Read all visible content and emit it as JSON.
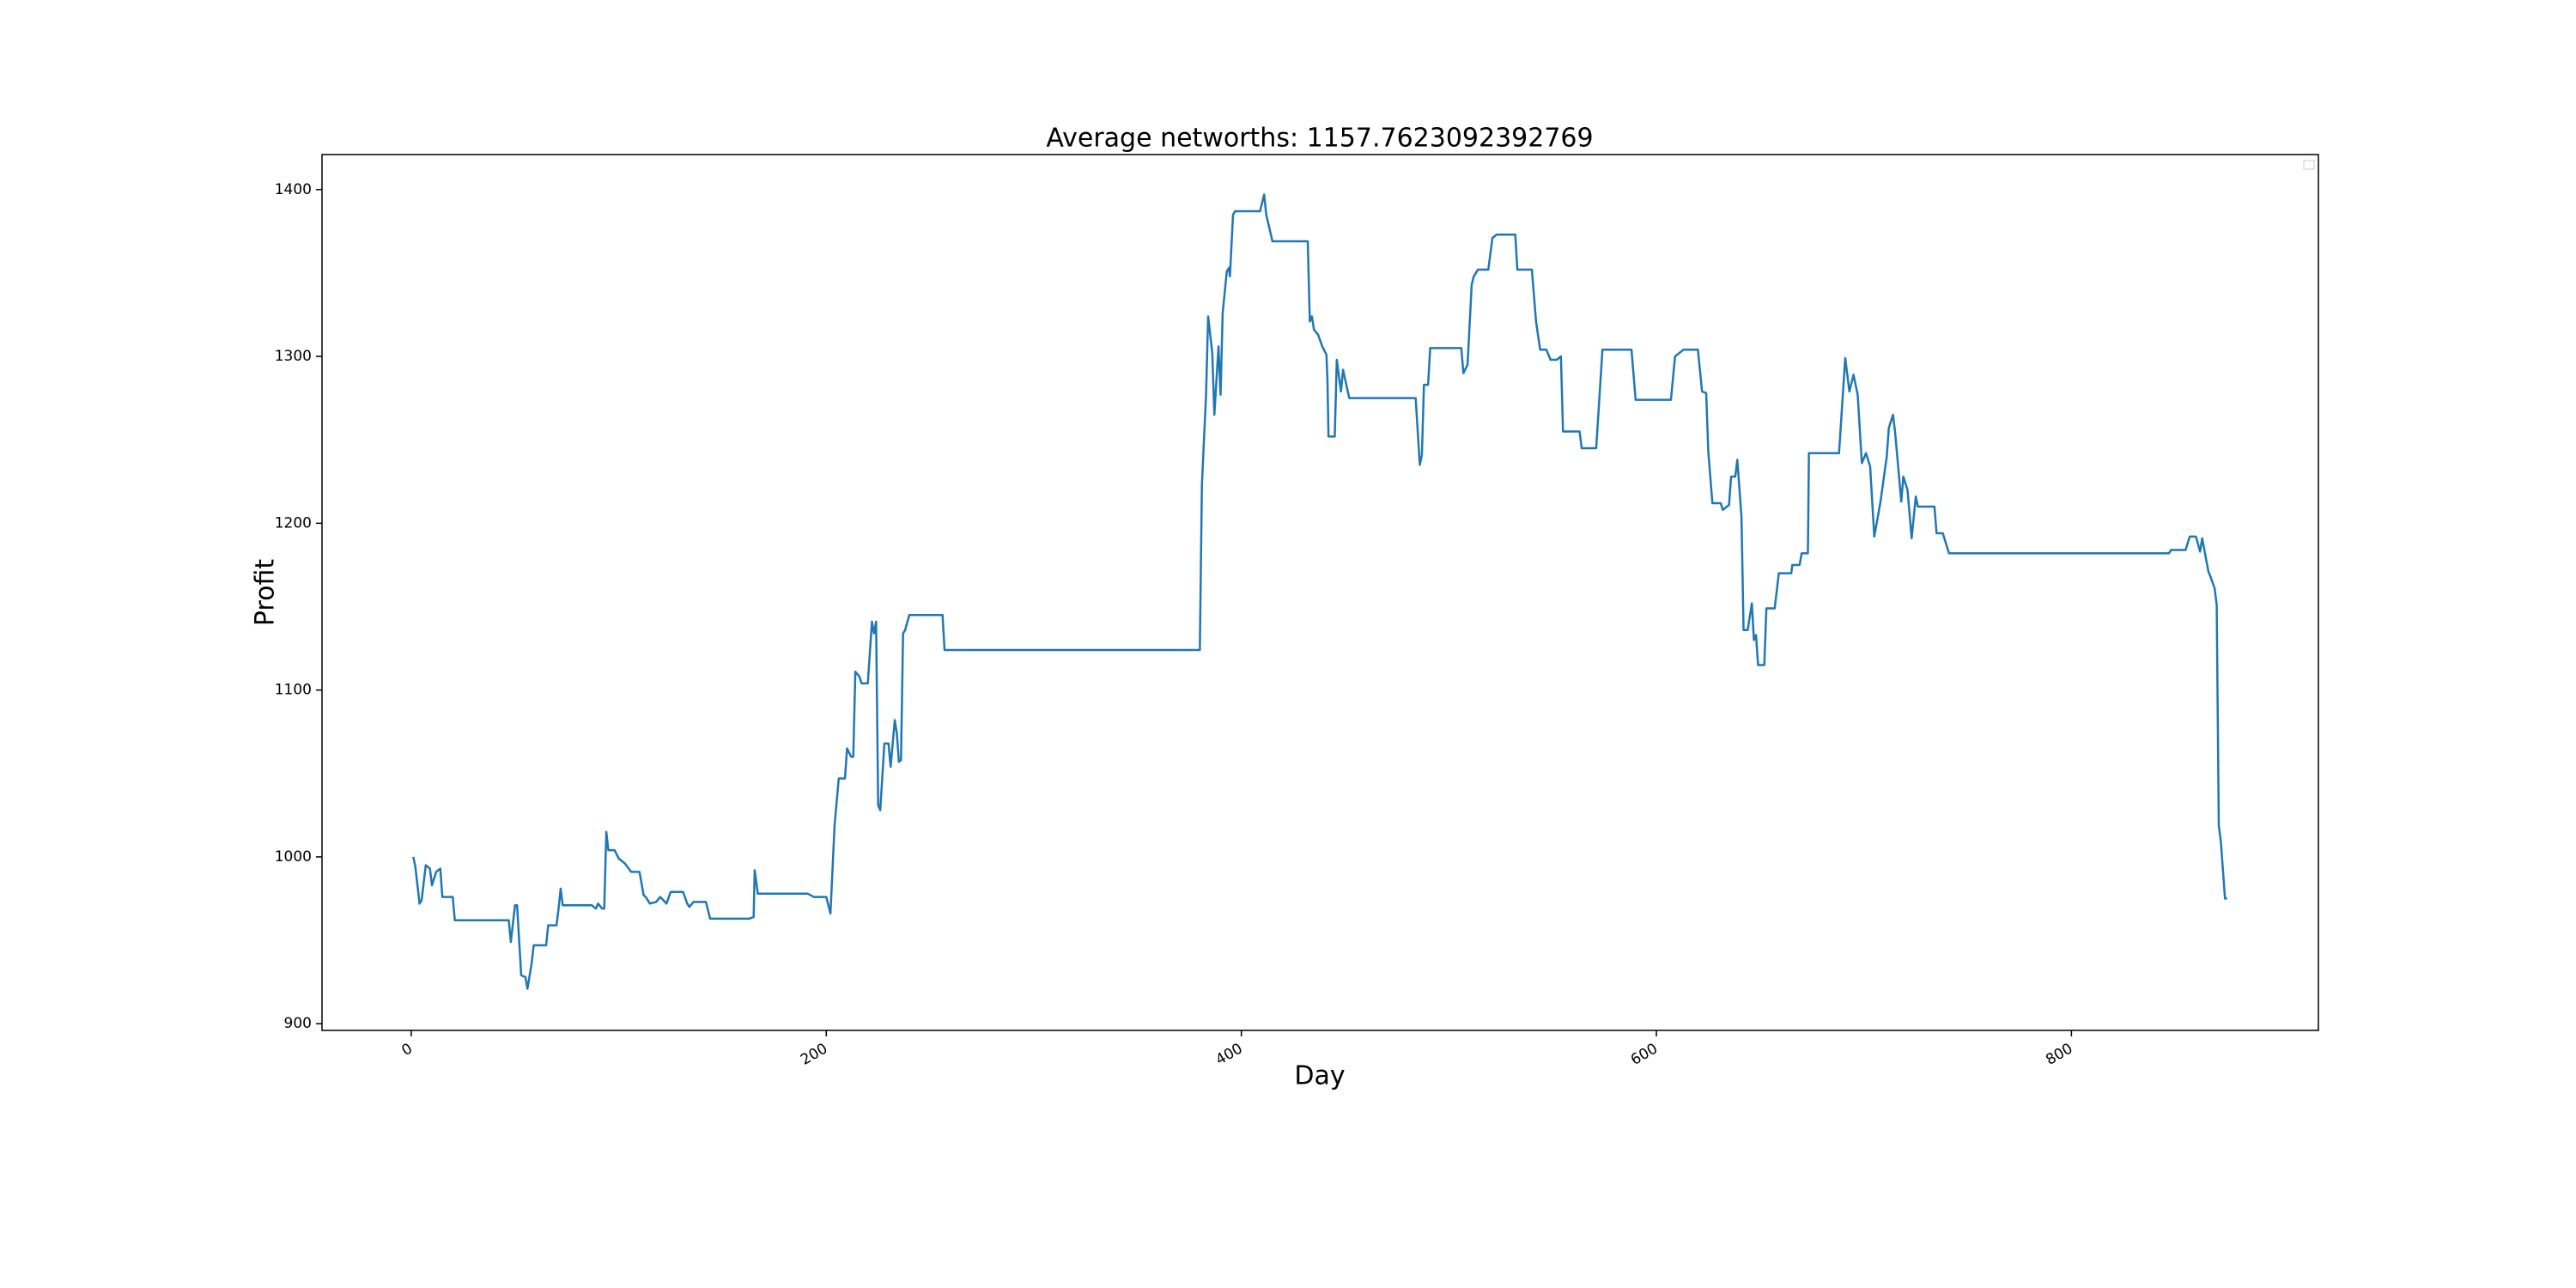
{
  "chart_data": {
    "type": "line",
    "title": "Average networths: 1157.7623092392769",
    "xlabel": "Day",
    "ylabel": "Profit",
    "color": "#1f77b4",
    "xlim": [
      -43,
      919
    ],
    "ylim": [
      896,
      1421
    ],
    "xticks": [
      0,
      200,
      400,
      600,
      800
    ],
    "yticks": [
      900,
      1000,
      1100,
      1200,
      1300,
      1400
    ],
    "series": [
      {
        "name": null,
        "color": "#1f77b4",
        "x": [
          1,
          2,
          4,
          5,
          7,
          9,
          10,
          12,
          14,
          15,
          20,
          21,
          47,
          48,
          50,
          51,
          53,
          55,
          56,
          58,
          59,
          65,
          66,
          70,
          71,
          72,
          73,
          87,
          89,
          90,
          92,
          93,
          94,
          95,
          98,
          100,
          103,
          106,
          110,
          112,
          113,
          115,
          118,
          120,
          123,
          125,
          131,
          133,
          134,
          136,
          142,
          144,
          163,
          165,
          165.5,
          167,
          191,
          194,
          200,
          202,
          204,
          206,
          209,
          210,
          212,
          213,
          214,
          216,
          217,
          220,
          222,
          223,
          224,
          225,
          226,
          228,
          230,
          231,
          233,
          234,
          235,
          236,
          237,
          238,
          240,
          256,
          257,
          380,
          381,
          383,
          384,
          386,
          387,
          389,
          390,
          391,
          393,
          394,
          394.5,
          396,
          397,
          409,
          411,
          412,
          415,
          432,
          433,
          434,
          435,
          437,
          439,
          441,
          441.5,
          442,
          445,
          446,
          448,
          449,
          452,
          484,
          486,
          487,
          488,
          490,
          491,
          506,
          507,
          509,
          511,
          512,
          514,
          519,
          521,
          523,
          532,
          533,
          540,
          542,
          544,
          547,
          549,
          552,
          554,
          555,
          563,
          564,
          571,
          574,
          588,
          590,
          607,
          609,
          613,
          620,
          622,
          624,
          625,
          627,
          631,
          632,
          635,
          636,
          638,
          639,
          641,
          642,
          644,
          646,
          647,
          648,
          649,
          652,
          653,
          657,
          659,
          665,
          665.5,
          669,
          670,
          673,
          673.5,
          688,
          691,
          693,
          695,
          697,
          699,
          701,
          703,
          705,
          708,
          711,
          712,
          714,
          715,
          718,
          719,
          721,
          723,
          725,
          726,
          734,
          735,
          738,
          741,
          847,
          848,
          855,
          857,
          860,
          862,
          863,
          866,
          867,
          869,
          870,
          871,
          872,
          874,
          875
        ],
        "values": [
          1000,
          994,
          972,
          974,
          995,
          993,
          983,
          991,
          993,
          976,
          976,
          962,
          962,
          949,
          971,
          971,
          929,
          928,
          921,
          936,
          947,
          947,
          959,
          959,
          969,
          981,
          971,
          971,
          969,
          972,
          969,
          969,
          1015,
          1004,
          1004,
          999,
          996,
          991,
          991,
          977,
          976,
          972,
          973,
          976,
          972,
          979,
          979,
          972,
          970,
          973,
          973,
          963,
          963,
          964,
          992,
          978,
          978,
          976,
          976,
          966,
          1019,
          1047,
          1047,
          1065,
          1060,
          1060,
          1111,
          1108,
          1104,
          1104,
          1141,
          1134,
          1141,
          1031,
          1028,
          1068,
          1068,
          1054,
          1082,
          1074,
          1057,
          1058,
          1134,
          1136,
          1145,
          1145,
          1124,
          1124,
          1223,
          1277,
          1324,
          1302,
          1265,
          1306,
          1277,
          1326,
          1351,
          1353,
          1348,
          1385,
          1387,
          1387,
          1397,
          1385,
          1369,
          1369,
          1321,
          1324,
          1316,
          1313,
          1306,
          1301,
          1286,
          1252,
          1252,
          1298,
          1279,
          1292,
          1275,
          1275,
          1235,
          1241,
          1283,
          1283,
          1305,
          1305,
          1290,
          1295,
          1343,
          1348,
          1352,
          1352,
          1371,
          1373,
          1373,
          1352,
          1352,
          1321,
          1304,
          1304,
          1298,
          1298,
          1300,
          1255,
          1255,
          1245,
          1245,
          1304,
          1304,
          1274,
          1274,
          1300,
          1304,
          1304,
          1279,
          1278,
          1243,
          1212,
          1212,
          1208,
          1211,
          1228,
          1228,
          1238,
          1204,
          1136,
          1136,
          1152,
          1130,
          1133,
          1115,
          1115,
          1149,
          1149,
          1170,
          1170,
          1175,
          1175,
          1182,
          1182,
          1242,
          1242,
          1299,
          1279,
          1289,
          1277,
          1236,
          1242,
          1234,
          1192,
          1213,
          1240,
          1257,
          1265,
          1255,
          1213,
          1228,
          1220,
          1191,
          1216,
          1210,
          1210,
          1194,
          1194,
          1182,
          1182,
          1184,
          1184,
          1192,
          1192,
          1183,
          1191,
          1171,
          1168,
          1161,
          1151,
          1019,
          1009,
          975,
          975
        ]
      }
    ]
  }
}
